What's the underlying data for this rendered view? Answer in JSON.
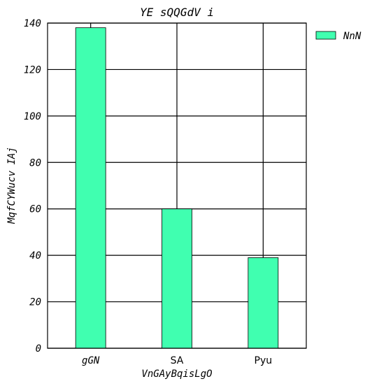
{
  "chart_data": {
    "type": "bar",
    "title": "YE  sQQGdV  i",
    "xlabel": "VnGAyBqisLgO",
    "ylabel": "MqfCYWucv IAj",
    "categories": [
      "gGN",
      "SA",
      "Pyu"
    ],
    "series": [
      {
        "name": "NnN",
        "values": [
          138,
          60,
          39
        ],
        "color": "#40ffb0"
      }
    ],
    "ylim": [
      0,
      140
    ],
    "yticks": [
      0,
      20,
      40,
      60,
      80,
      100,
      120,
      140
    ],
    "grid": true,
    "legend": "top-right"
  }
}
